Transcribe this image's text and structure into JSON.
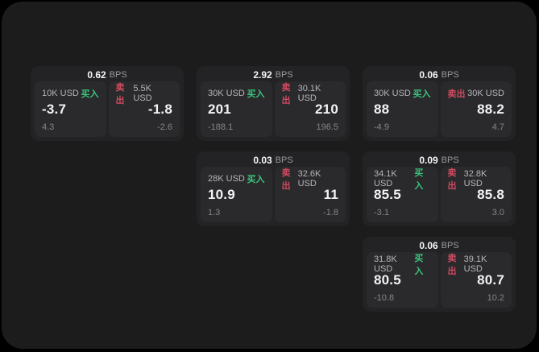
{
  "theme": {
    "background_color": "#000000",
    "panel_color": "#1c1c1d",
    "card_color": "#232325",
    "tile_color": "#2a2a2c",
    "buy_color": "#3bc47e",
    "sell_color": "#d04a5f"
  },
  "cards": [
    {
      "col": 1,
      "row": 1,
      "bps_value": "0.62",
      "bps_unit": "BPS",
      "buy": {
        "amount": "10K USD",
        "side_label": "买入",
        "price": "-3.7",
        "delta": "4.3"
      },
      "sell": {
        "amount": "5.5K USD",
        "side_label": "卖出",
        "price": "-1.8",
        "delta": "-2.6"
      }
    },
    {
      "col": 2,
      "row": 1,
      "bps_value": "2.92",
      "bps_unit": "BPS",
      "buy": {
        "amount": "30K USD",
        "side_label": "买入",
        "price": "201",
        "delta": "-188.1"
      },
      "sell": {
        "amount": "30.1K USD",
        "side_label": "卖出",
        "price": "210",
        "delta": "196.5"
      }
    },
    {
      "col": 3,
      "row": 1,
      "bps_value": "0.06",
      "bps_unit": "BPS",
      "buy": {
        "amount": "30K USD",
        "side_label": "买入",
        "price": "88",
        "delta": "-4.9"
      },
      "sell": {
        "amount": "30K USD",
        "side_label": "卖出",
        "price": "88.2",
        "delta": "4.7"
      }
    },
    {
      "col": 2,
      "row": 2,
      "bps_value": "0.03",
      "bps_unit": "BPS",
      "buy": {
        "amount": "28K USD",
        "side_label": "买入",
        "price": "10.9",
        "delta": "1.3"
      },
      "sell": {
        "amount": "32.6K USD",
        "side_label": "卖出",
        "price": "11",
        "delta": "-1.8"
      }
    },
    {
      "col": 3,
      "row": 2,
      "bps_value": "0.09",
      "bps_unit": "BPS",
      "buy": {
        "amount": "34.1K USD",
        "side_label": "买入",
        "price": "85.5",
        "delta": "-3.1"
      },
      "sell": {
        "amount": "32.8K USD",
        "side_label": "卖出",
        "price": "85.8",
        "delta": "3.0"
      }
    },
    {
      "col": 3,
      "row": 3,
      "bps_value": "0.06",
      "bps_unit": "BPS",
      "buy": {
        "amount": "31.8K USD",
        "side_label": "买入",
        "price": "80.5",
        "delta": "-10.8"
      },
      "sell": {
        "amount": "39.1K USD",
        "side_label": "卖出",
        "price": "80.7",
        "delta": "10.2"
      }
    }
  ]
}
